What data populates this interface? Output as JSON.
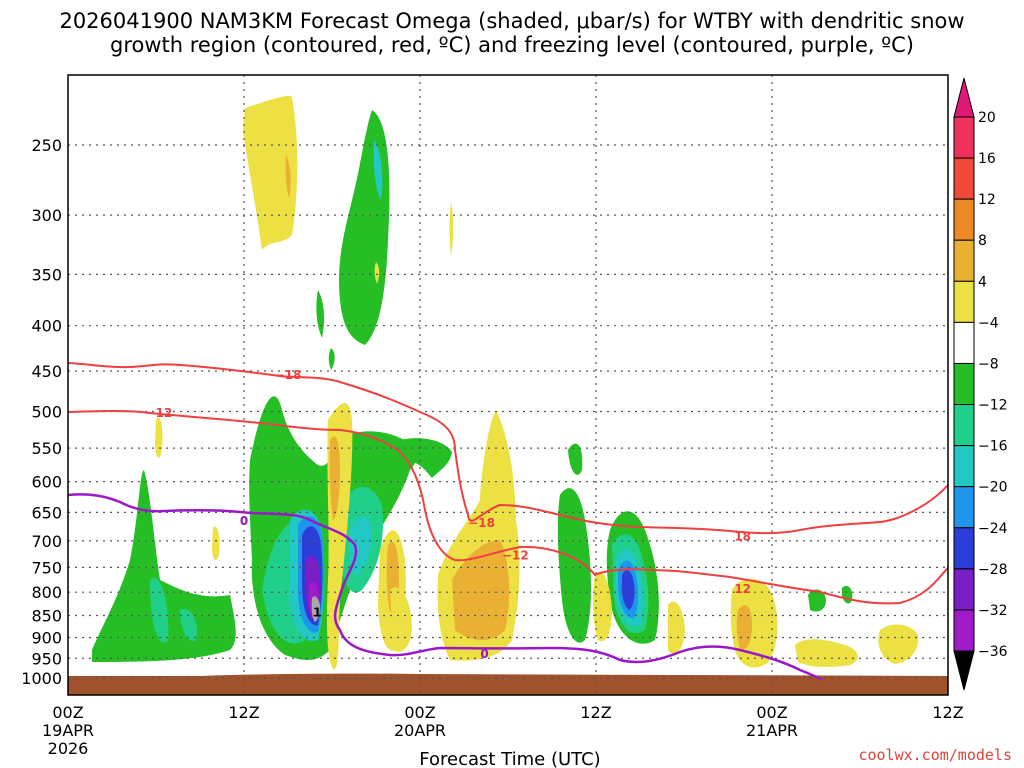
{
  "chart_data": {
    "type": "heatmap",
    "title_line1": "2026041900 NAM3KM Forecast Omega (shaded, μbar/s) for WTBY with dendritic snow",
    "title_line2": "growth region (contoured, red, ºC) and freezing level (contoured, purple, ºC)",
    "xlabel": "Forecast Time (UTC)",
    "x_ticks": [
      {
        "hour": 0,
        "label": "00Z",
        "sub1": "19APR",
        "sub2": "2026"
      },
      {
        "hour": 12,
        "label": "12Z",
        "sub1": "",
        "sub2": ""
      },
      {
        "hour": 24,
        "label": "00Z",
        "sub1": "20APR",
        "sub2": ""
      },
      {
        "hour": 36,
        "label": "12Z",
        "sub1": "",
        "sub2": ""
      },
      {
        "hour": 48,
        "label": "00Z",
        "sub1": "21APR",
        "sub2": ""
      },
      {
        "hour": 60,
        "label": "12Z",
        "sub1": "",
        "sub2": ""
      }
    ],
    "x_range": [
      0,
      60
    ],
    "y_ticks": [
      250,
      300,
      350,
      400,
      450,
      500,
      550,
      600,
      650,
      700,
      750,
      800,
      850,
      900,
      950,
      1000
    ],
    "y_range_hpa": [
      200,
      1025
    ],
    "colorbar": {
      "levels": [
        "20",
        "16",
        "12",
        "8",
        "4",
        "−4",
        "−8",
        "−12",
        "−16",
        "−20",
        "−24",
        "−28",
        "−32",
        "−36"
      ],
      "colors": [
        "#f0325a",
        "#ee4a37",
        "#ee8a26",
        "#e9b034",
        "#ece043",
        "#ffffff",
        "#25bf25",
        "#20cf8a",
        "#21c8c4",
        "#1e96ee",
        "#2b3fd8",
        "#7a1ec8",
        "#a21bc9",
        "#a9a9a9"
      ],
      "top_arrow_color": "#e0187a",
      "bottom_arrow_color": "#000000"
    },
    "colors": {
      "ground": "#a0522d",
      "dgz": "#ee4040",
      "freezing": "#9a18c8"
    },
    "contour_labels": [
      {
        "text": "−18",
        "kind": "dgz",
        "hour": 15.0,
        "hpa": 455
      },
      {
        "text": "−12",
        "kind": "dgz",
        "hour": 6.2,
        "hpa": 502
      },
      {
        "text": "0",
        "kind": "frz",
        "hour": 12.0,
        "hpa": 665
      },
      {
        "text": "−18",
        "kind": "dgz",
        "hour": 28.2,
        "hpa": 668
      },
      {
        "text": "−12",
        "kind": "dgz",
        "hour": 30.5,
        "hpa": 727
      },
      {
        "text": "0",
        "kind": "frz",
        "hour": 28.4,
        "hpa": 940
      },
      {
        "text": "18",
        "kind": "dgz",
        "hour": 46.0,
        "hpa": 692
      },
      {
        "text": "12",
        "kind": "dgz",
        "hour": 46.0,
        "hpa": 793
      },
      {
        "text": "1",
        "kind": "omega",
        "hour": 17.0,
        "hpa": 843
      }
    ],
    "credit": "coolwx.com/models"
  }
}
